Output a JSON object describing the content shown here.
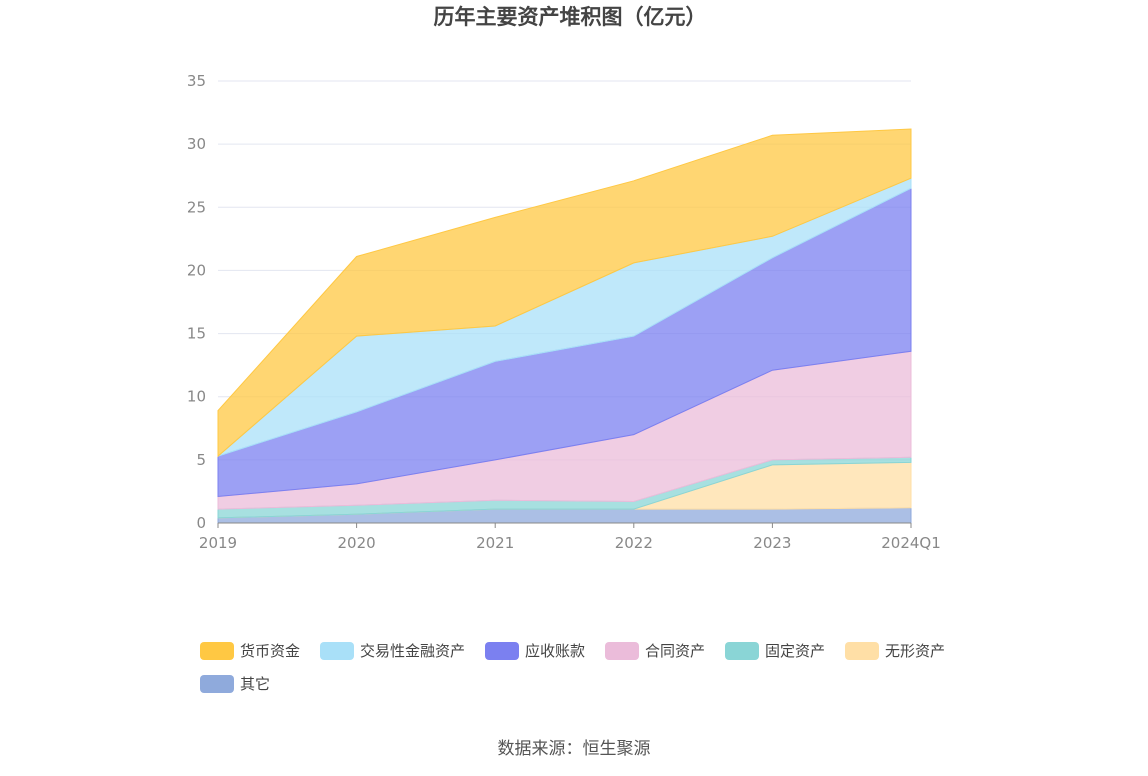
{
  "chart_data": {
    "type": "area",
    "stacked": true,
    "title": "历年主要资产堆积图（亿元）",
    "categories": [
      "2019",
      "2020",
      "2021",
      "2022",
      "2023",
      "2024Q1"
    ],
    "ylim": [
      0,
      35
    ],
    "yticks": [
      0,
      5,
      10,
      15,
      20,
      25,
      30,
      35
    ],
    "grid": true,
    "legend_position": "bottom",
    "series": [
      {
        "name": "其它",
        "color": "#8faadc",
        "values": [
          0.4,
          0.7,
          1.1,
          1.1,
          1.1,
          1.2
        ]
      },
      {
        "name": "无形资产",
        "color": "#ffdfa6",
        "values": [
          0.0,
          0.0,
          0.0,
          0.0,
          3.5,
          3.6
        ]
      },
      {
        "name": "固定资产",
        "color": "#8ad5d6",
        "values": [
          0.7,
          0.7,
          0.7,
          0.6,
          0.4,
          0.4
        ]
      },
      {
        "name": "合同资产",
        "color": "#ebbcda",
        "values": [
          1.0,
          1.7,
          3.2,
          5.3,
          7.1,
          8.4
        ]
      },
      {
        "name": "应收账款",
        "color": "#7b80f0",
        "values": [
          3.2,
          5.7,
          7.8,
          7.8,
          8.9,
          12.9
        ]
      },
      {
        "name": "交易性金融资产",
        "color": "#a9e0f8",
        "values": [
          0.0,
          6.0,
          2.8,
          5.8,
          1.7,
          0.8
        ]
      },
      {
        "name": "货币资金",
        "color": "#ffc843",
        "values": [
          3.6,
          6.3,
          8.6,
          6.5,
          8.0,
          3.9
        ]
      }
    ],
    "legend_order": [
      "货币资金",
      "交易性金融资产",
      "应收账款",
      "合同资产",
      "固定资产",
      "无形资产",
      "其它"
    ]
  },
  "source": "数据来源：恒生聚源"
}
